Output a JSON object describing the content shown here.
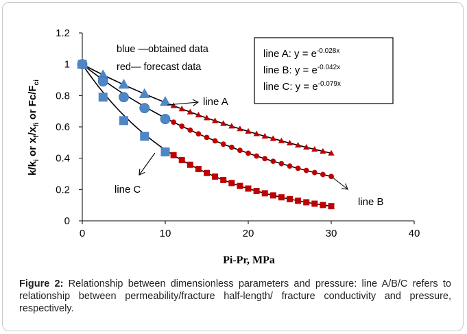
{
  "chart_data": {
    "type": "scatter",
    "title": "",
    "xlabel": "Pi-Pr, MPa",
    "ylabel_parts": [
      "k/k",
      "i",
      " or x",
      "f",
      "/x",
      "fi",
      " or Fc/F",
      "ci"
    ],
    "xlim": [
      0,
      40
    ],
    "ylim": [
      0,
      1.2
    ],
    "x_ticks": [
      0,
      10,
      20,
      30,
      40
    ],
    "y_ticks": [
      "0",
      "0.2",
      "0.4",
      "0.6",
      "0.8",
      "1",
      "1.2"
    ],
    "grid": false,
    "note_blue": "blue —obtained data",
    "note_red": "red— forecast data",
    "equations": [
      {
        "label": "line A: y = e",
        "exponent": "-0.028x"
      },
      {
        "label": "line B: y = e",
        "exponent": "-0.042x"
      },
      {
        "label": "line C: y = e",
        "exponent": "-0.079x"
      }
    ],
    "line_labels": [
      "line A",
      "line B",
      "line C"
    ],
    "series": [
      {
        "line": "A",
        "k": 0.028,
        "marker": "triangle",
        "obtained_x": [
          0,
          2.5,
          5,
          7.5,
          10
        ],
        "obtained_y": [
          1.0,
          0.93,
          0.87,
          0.81,
          0.76
        ],
        "forecast_x_range": [
          11,
          30
        ],
        "forecast_step": 1
      },
      {
        "line": "B",
        "k": 0.042,
        "marker": "circle",
        "obtained_x": [
          0,
          2.5,
          5,
          7.5,
          10
        ],
        "obtained_y": [
          1.0,
          0.89,
          0.79,
          0.72,
          0.65
        ],
        "forecast_x_range": [
          11,
          30
        ],
        "forecast_step": 1
      },
      {
        "line": "C",
        "k": 0.079,
        "marker": "square",
        "obtained_x": [
          0,
          2.5,
          5,
          7.5,
          10
        ],
        "obtained_y": [
          1.0,
          0.79,
          0.64,
          0.54,
          0.44
        ],
        "forecast_x_range": [
          11,
          30
        ],
        "forecast_step": 1
      }
    ],
    "colors": {
      "obtained": "#4f86c6",
      "forecast": "#c00000",
      "fit": "#000000"
    }
  },
  "caption": {
    "label": "Figure 2:",
    "text": " Relationship between dimensionless parameters and pressure: line A/B/C refers to relationship between permeability/fracture half-length/ fracture conductivity and pressure, respectively."
  }
}
